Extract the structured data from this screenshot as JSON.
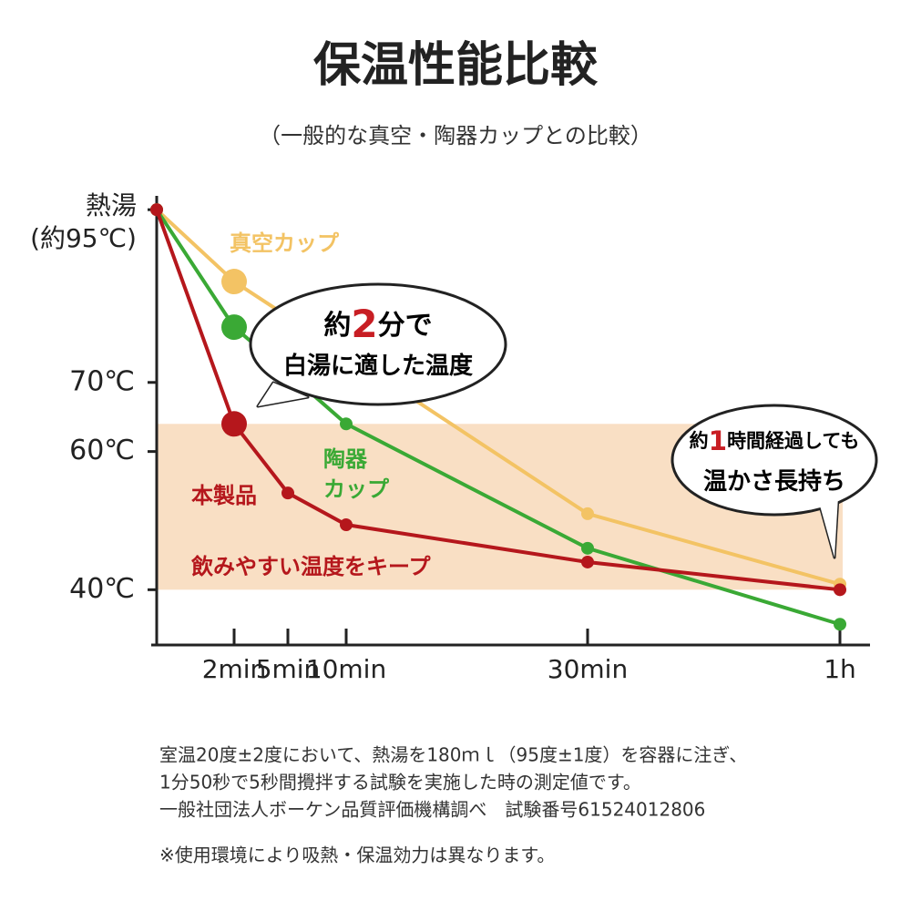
{
  "chart_data": {
    "type": "line",
    "title": "保温性能比較",
    "subtitle": "（一般的な真空・陶器カップとの比較）",
    "categories": [
      null,
      "2min",
      "5min",
      "10min",
      "30min",
      "1h"
    ],
    "ylim": [
      32,
      97
    ],
    "yticks": [
      {
        "value": 95,
        "label": "熱湯\n(約95℃)"
      },
      {
        "value": 70,
        "label": "70℃"
      },
      {
        "value": 60,
        "label": "60℃"
      },
      {
        "value": 40,
        "label": "40℃"
      }
    ],
    "band": {
      "range": [
        40,
        64
      ],
      "label": "飲みやすい温度をキープ",
      "color": "#f9dfc4"
    },
    "series": [
      {
        "label": [
          "真空カップ"
        ],
        "color": "#f3c364",
        "values": [
          95,
          84.6,
          79.5,
          74,
          51,
          40.8
        ]
      },
      {
        "label": [
          "陶器",
          "カップ"
        ],
        "color": "#3aa935",
        "values": [
          95,
          78,
          71.4,
          64,
          46,
          35
        ]
      },
      {
        "label": [
          "本製品"
        ],
        "color": "#b5171c",
        "values": [
          95,
          64,
          54,
          49.4,
          44,
          40
        ]
      }
    ],
    "callouts": [
      {
        "lines": [
          [
            "約",
            "2",
            "分で"
          ],
          [
            "白湯に適した温度"
          ]
        ]
      },
      {
        "lines": [
          [
            "約",
            "1",
            "時間経過しても"
          ],
          [
            "温かさ長持ち"
          ]
        ]
      }
    ],
    "footnotes": [
      "室温20度±2度において、熱湯を180ｍｌ（95度±1度）を容器に注ぎ、",
      "1分50秒で5秒間攪拌する試験を実施した時の測定値です。",
      "一般社団法人ボーケン品質評価機構調べ　試験番号61524012806",
      "※使用環境により吸熱・保温効力は異なります。"
    ]
  }
}
